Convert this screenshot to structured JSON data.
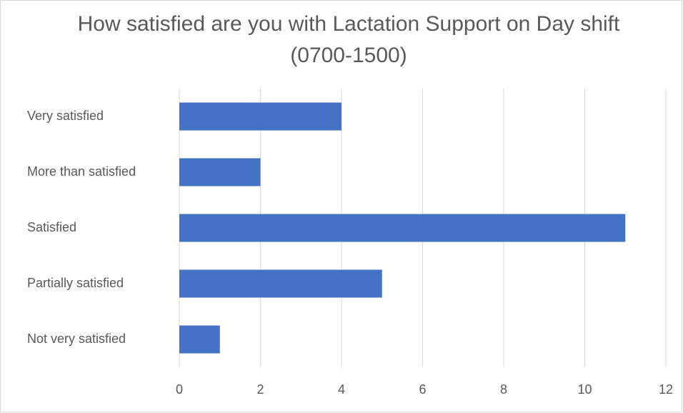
{
  "chart_data": {
    "type": "hbar",
    "title": "How satisfied are you with Lactation Support on Day shift (0700-1500)",
    "categories": [
      "Very satisfied",
      "More than satisfied",
      "Satisfied",
      "Partially satisfied",
      "Not very satisfied"
    ],
    "values": [
      4,
      2,
      11,
      5,
      1
    ],
    "color": "#4472c4",
    "xlim": [
      0,
      12
    ],
    "xticks": [
      0,
      2,
      4,
      6,
      8,
      10,
      12
    ],
    "grid": true
  }
}
